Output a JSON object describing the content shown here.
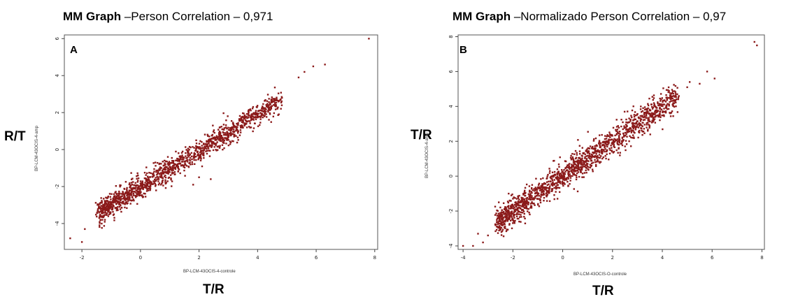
{
  "chart_data": [
    {
      "type": "scatter",
      "panel_letter": "A",
      "title_bold": "MM Graph",
      "title_rest": " –Person Correlation – 0,971",
      "ylabel_big": "R/T",
      "ylabel_small": "BP-LCM-43OCIS-4-amp",
      "xlabel_small": "BP-LCM-43OCIS-4-controle",
      "xlabel_big": "T/R",
      "xlim": [
        -2.6,
        8.1
      ],
      "ylim": [
        -5.4,
        6.2
      ],
      "x_ticks": [
        -2,
        0,
        2,
        4,
        6,
        8
      ],
      "y_ticks": [
        -4,
        -2,
        0,
        2,
        4,
        6
      ],
      "x_tick_labels": [
        "-2",
        "0",
        "2",
        "4",
        "6",
        "8"
      ],
      "y_tick_labels": [
        "-4",
        "-2",
        "0",
        "2",
        "4",
        "6"
      ],
      "trend": {
        "slope": 0.98,
        "intercept": -2.0,
        "x_min": -1.4,
        "x_max": 4.8,
        "n": 1400,
        "spread": 0.3
      },
      "outliers": [
        [
          7.8,
          6.0
        ],
        [
          6.3,
          4.6
        ],
        [
          5.9,
          4.5
        ],
        [
          -2.4,
          -4.8
        ],
        [
          -2.0,
          -5.0
        ],
        [
          -1.9,
          -4.3
        ],
        [
          -1.4,
          -4.1
        ],
        [
          -1.3,
          -3.8
        ],
        [
          1.8,
          -1.9
        ],
        [
          2.0,
          -1.5
        ],
        [
          2.4,
          -1.6
        ],
        [
          5.4,
          3.9
        ],
        [
          5.6,
          4.2
        ]
      ],
      "series_color": "#8b1a1a"
    },
    {
      "type": "scatter",
      "panel_letter": "B",
      "title_bold": "MM Graph",
      "title_rest": " –Normalizado Person Correlation – 0,97",
      "ylabel_big": "T/R",
      "ylabel_small": "BP-LCM-43OCIS-4-amp",
      "xlabel_small": "BP-LCM-43OCIS-O-controle",
      "xlabel_big": "T/R",
      "xlim": [
        -4.2,
        8.1
      ],
      "ylim": [
        -4.2,
        8.1
      ],
      "x_ticks": [
        -4,
        -2,
        0,
        2,
        4,
        6,
        8
      ],
      "y_ticks": [
        -4,
        -2,
        0,
        2,
        4,
        6,
        8
      ],
      "x_tick_labels": [
        "-4",
        "-2",
        "0",
        "2",
        "4",
        "6",
        "8"
      ],
      "y_tick_labels": [
        "-4",
        "-2",
        "0",
        "2",
        "4",
        "6",
        "8"
      ],
      "trend": {
        "slope": 1.0,
        "intercept": 0.0,
        "x_min": -2.6,
        "x_max": 4.6,
        "n": 1500,
        "spread": 0.4
      },
      "outliers": [
        [
          7.7,
          7.7
        ],
        [
          7.8,
          7.5
        ],
        [
          6.1,
          5.6
        ],
        [
          5.8,
          6.0
        ],
        [
          5.1,
          5.4
        ],
        [
          5.5,
          5.3
        ],
        [
          -3.6,
          -4.0
        ],
        [
          -3.2,
          -3.8
        ],
        [
          -4.0,
          -4.0
        ],
        [
          -3.0,
          -3.4
        ],
        [
          -3.4,
          -3.3
        ],
        [
          4.6,
          4.7
        ],
        [
          5.0,
          5.1
        ]
      ],
      "series_color": "#8b1a1a"
    }
  ]
}
